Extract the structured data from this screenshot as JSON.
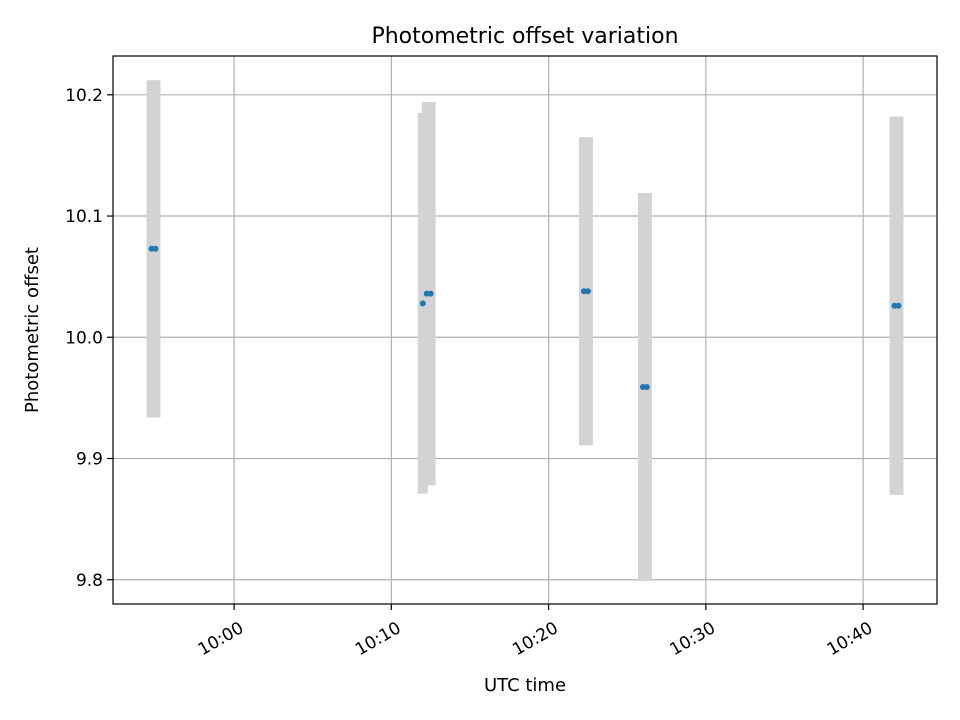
{
  "chart_data": {
    "type": "scatter",
    "title": "Photometric offset variation",
    "xlabel": "UTC time",
    "ylabel": "Photometric offset",
    "x_tick_labels": [
      "10:00",
      "10:10",
      "10:20",
      "10:30",
      "10:40"
    ],
    "y_tick_labels": [
      "9.8",
      "9.9",
      "10.0",
      "10.1",
      "10.2"
    ],
    "x_ticks_minutes": [
      600,
      610,
      620,
      630,
      640
    ],
    "y_ticks": [
      9.8,
      9.9,
      10.0,
      10.1,
      10.2
    ],
    "xlim_minutes": [
      592.3,
      644.7
    ],
    "ylim": [
      9.78,
      10.232
    ],
    "grid": true,
    "colors": {
      "point": "#1f77b4",
      "errorbar": "#d3d3d3",
      "grid": "#b0b0b0"
    },
    "points": [
      {
        "time": "09:54:45",
        "y": 10.073,
        "yerr": 0.139
      },
      {
        "time": "09:55:00",
        "y": 10.073,
        "yerr": 0.139
      },
      {
        "time": "10:12:00",
        "y": 10.028,
        "yerr": 0.157
      },
      {
        "time": "10:12:15",
        "y": 10.036,
        "yerr": 0.158
      },
      {
        "time": "10:12:30",
        "y": 10.036,
        "yerr": 0.158
      },
      {
        "time": "10:22:15",
        "y": 10.038,
        "yerr": 0.127
      },
      {
        "time": "10:22:30",
        "y": 10.038,
        "yerr": 0.127
      },
      {
        "time": "10:26:00",
        "y": 9.959,
        "yerr": 0.16
      },
      {
        "time": "10:26:15",
        "y": 9.959,
        "yerr": 0.16
      },
      {
        "time": "10:42:00",
        "y": 10.026,
        "yerr": 0.156
      },
      {
        "time": "10:42:15",
        "y": 10.026,
        "yerr": 0.156
      }
    ]
  }
}
